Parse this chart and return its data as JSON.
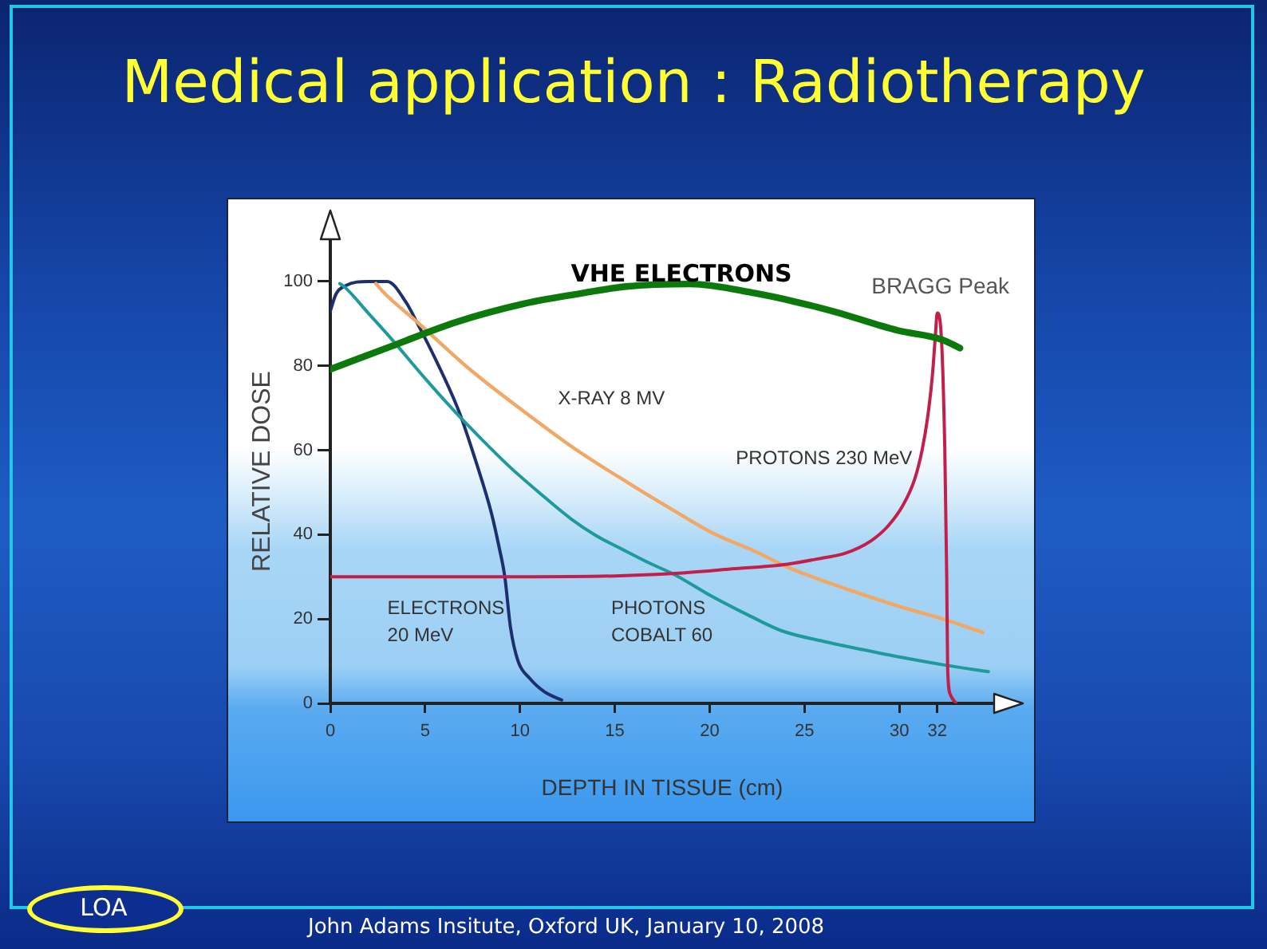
{
  "chart_data": {
    "type": "line",
    "title": "Medical application : Radiotherapy",
    "xlabel": "DEPTH IN TISSUE (cm)",
    "ylabel": "RELATIVE DOSE",
    "xlim": [
      0,
      35
    ],
    "ylim": [
      0,
      110
    ],
    "xticks": [
      0,
      5,
      10,
      15,
      20,
      25,
      30,
      32
    ],
    "yticks": [
      0,
      20,
      40,
      60,
      80,
      100
    ],
    "grid": false,
    "legend": false,
    "marker": "none",
    "line_style": "solid",
    "series": [
      {
        "name": "ELECTRONS 20 MeV",
        "color": "#1c2f6e",
        "x": [
          0,
          0.3,
          0.8,
          2,
          3,
          4,
          4.6,
          5.5,
          6.8,
          7.7,
          8.5,
          8.9,
          9.2,
          9.5,
          9.9,
          10.5,
          11.3,
          12.2
        ],
        "values": [
          93,
          97,
          99,
          100,
          100,
          95,
          90,
          82,
          69,
          57,
          45,
          37,
          30,
          18,
          10,
          6,
          2.7,
          0.8
        ]
      },
      {
        "name": "PHOTONS COBALT 60",
        "color": "#1e9a9c",
        "x": [
          0.5,
          0.8,
          2,
          3.2,
          5,
          6.6,
          8,
          9.4,
          11,
          12.7,
          14,
          15.4,
          16.8,
          18.2,
          20.1,
          22,
          23.8,
          26,
          28,
          30,
          32.5,
          34.7
        ],
        "values": [
          99.5,
          98.5,
          92.5,
          86.5,
          77,
          69,
          62.5,
          56.3,
          50,
          43.7,
          39.8,
          36.5,
          33.3,
          30.4,
          25.4,
          21,
          17.2,
          14.7,
          12.8,
          11,
          9,
          7.5
        ]
      },
      {
        "name": "X-RAY 8 MV",
        "color": "#f2a865",
        "x": [
          2.4,
          2.9,
          4.6,
          7.4,
          10.5,
          13,
          15.8,
          18,
          20.1,
          22.4,
          24.1,
          27.1,
          30,
          32.5,
          34.4
        ],
        "values": [
          99.5,
          97,
          90.3,
          79,
          68.2,
          60,
          52,
          46,
          40.5,
          36,
          32.3,
          27.3,
          23,
          19.7,
          16.8
        ]
      },
      {
        "name": "PROTONS 230 MeV",
        "color": "#c21f4c",
        "x": [
          0,
          5,
          10,
          15,
          18.2,
          21,
          24.1,
          26,
          27.1,
          28.5,
          29.4,
          30.2,
          30.8,
          31.2,
          31.5,
          31.75,
          31.9,
          32,
          32.2,
          32.4,
          32.5,
          32.55,
          32.7,
          33
        ],
        "values": [
          30,
          30,
          30,
          30.2,
          30.8,
          31.8,
          33,
          34.5,
          35.5,
          38.5,
          42,
          47,
          53,
          60,
          68,
          78,
          87,
          92.5,
          88,
          60,
          30,
          8,
          2,
          0
        ]
      },
      {
        "name": "VHE ELECTRONS",
        "color": "#0b7a0b",
        "x": [
          0,
          3.2,
          6.6,
          10.2,
          13,
          15.6,
          19,
          22.4,
          24.5,
          26.6,
          29.9,
          32.2,
          33.2
        ],
        "values": [
          79.2,
          84.6,
          90.3,
          94.7,
          97,
          98.8,
          99.4,
          97.2,
          95.2,
          92.8,
          88.4,
          86.3,
          84.2
        ]
      }
    ],
    "annotations": [
      {
        "text": "BRAGG Peak",
        "x": 32,
        "y": 92.5
      },
      "John Adams Insitute, Oxford UK, January 10, 2008",
      "LOA"
    ]
  }
}
